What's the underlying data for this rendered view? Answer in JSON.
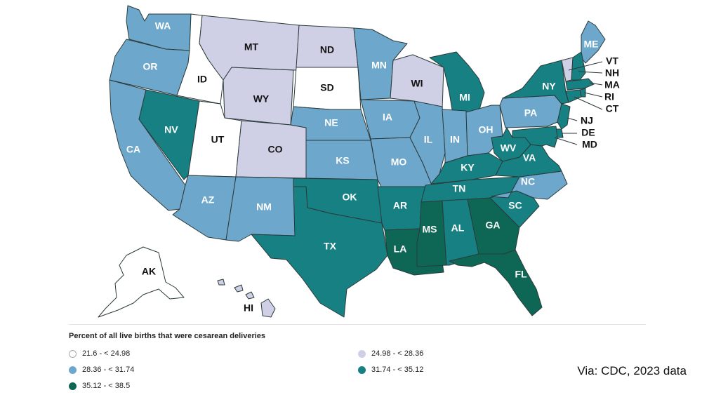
{
  "legend": {
    "title": "Percent of all live births that were cesarean deliveries",
    "bins": [
      {
        "label": "21.6 - < 24.98",
        "color": "#ffffff",
        "border": "#aaaaaa"
      },
      {
        "label": "24.98 - < 28.36",
        "color": "#cfd0e6",
        "border": "#cfd0e6"
      },
      {
        "label": "28.36 - < 31.74",
        "color": "#6ea7cc",
        "border": "#6ea7cc"
      },
      {
        "label": "31.74 - < 35.12",
        "color": "#168083",
        "border": "#168083"
      },
      {
        "label": "35.12 - < 38.5",
        "color": "#0e6655",
        "border": "#0e6655"
      }
    ]
  },
  "source": "Via: CDC, 2023 data",
  "states": [
    {
      "abbr": "WA",
      "bin": 2
    },
    {
      "abbr": "OR",
      "bin": 2
    },
    {
      "abbr": "CA",
      "bin": 2
    },
    {
      "abbr": "ID",
      "bin": 0
    },
    {
      "abbr": "NV",
      "bin": 3
    },
    {
      "abbr": "UT",
      "bin": 0
    },
    {
      "abbr": "AZ",
      "bin": 2
    },
    {
      "abbr": "MT",
      "bin": 1
    },
    {
      "abbr": "WY",
      "bin": 1
    },
    {
      "abbr": "CO",
      "bin": 1
    },
    {
      "abbr": "NM",
      "bin": 2
    },
    {
      "abbr": "ND",
      "bin": 1
    },
    {
      "abbr": "SD",
      "bin": 0
    },
    {
      "abbr": "NE",
      "bin": 2
    },
    {
      "abbr": "KS",
      "bin": 2
    },
    {
      "abbr": "OK",
      "bin": 3
    },
    {
      "abbr": "TX",
      "bin": 3
    },
    {
      "abbr": "MN",
      "bin": 2
    },
    {
      "abbr": "IA",
      "bin": 2
    },
    {
      "abbr": "MO",
      "bin": 2
    },
    {
      "abbr": "AR",
      "bin": 3
    },
    {
      "abbr": "LA",
      "bin": 4
    },
    {
      "abbr": "WI",
      "bin": 1
    },
    {
      "abbr": "IL",
      "bin": 2
    },
    {
      "abbr": "MI",
      "bin": 3
    },
    {
      "abbr": "IN",
      "bin": 2
    },
    {
      "abbr": "OH",
      "bin": 2
    },
    {
      "abbr": "KY",
      "bin": 3
    },
    {
      "abbr": "TN",
      "bin": 3
    },
    {
      "abbr": "MS",
      "bin": 4
    },
    {
      "abbr": "AL",
      "bin": 3
    },
    {
      "abbr": "GA",
      "bin": 4
    },
    {
      "abbr": "FL",
      "bin": 4
    },
    {
      "abbr": "SC",
      "bin": 3
    },
    {
      "abbr": "NC",
      "bin": 2
    },
    {
      "abbr": "VA",
      "bin": 3
    },
    {
      "abbr": "WV",
      "bin": 3
    },
    {
      "abbr": "PA",
      "bin": 2
    },
    {
      "abbr": "NY",
      "bin": 3
    },
    {
      "abbr": "NJ",
      "bin": 3
    },
    {
      "abbr": "DE",
      "bin": 3
    },
    {
      "abbr": "MD",
      "bin": 3
    },
    {
      "abbr": "ME",
      "bin": 2
    },
    {
      "abbr": "VT",
      "bin": 1
    },
    {
      "abbr": "NH",
      "bin": 3
    },
    {
      "abbr": "MA",
      "bin": 3
    },
    {
      "abbr": "RI",
      "bin": 3
    },
    {
      "abbr": "CT",
      "bin": 3
    },
    {
      "abbr": "AK",
      "bin": 0
    },
    {
      "abbr": "HI",
      "bin": 1
    }
  ]
}
